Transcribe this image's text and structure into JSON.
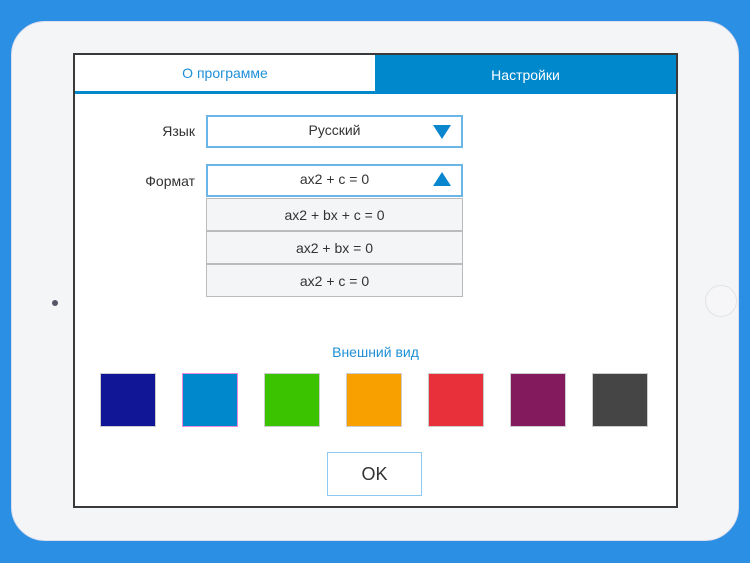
{
  "tabs": [
    {
      "label": "О программе",
      "active": false
    },
    {
      "label": "Настройки",
      "active": true
    }
  ],
  "language": {
    "label": "Язык",
    "value": "Русский"
  },
  "format": {
    "label": "Формат",
    "value": "ax2 + c = 0",
    "options": [
      "ax2 + bx + c = 0",
      "ax2 + bx = 0",
      "ax2 + c = 0"
    ]
  },
  "appearance": {
    "title": "Внешний вид",
    "colors": [
      "#111696",
      "#0088cc",
      "#3cc300",
      "#f8a000",
      "#e8303a",
      "#841a5e",
      "#454545"
    ],
    "selected_index": 1
  },
  "ok_label": "OK",
  "accent": "#0088cc"
}
